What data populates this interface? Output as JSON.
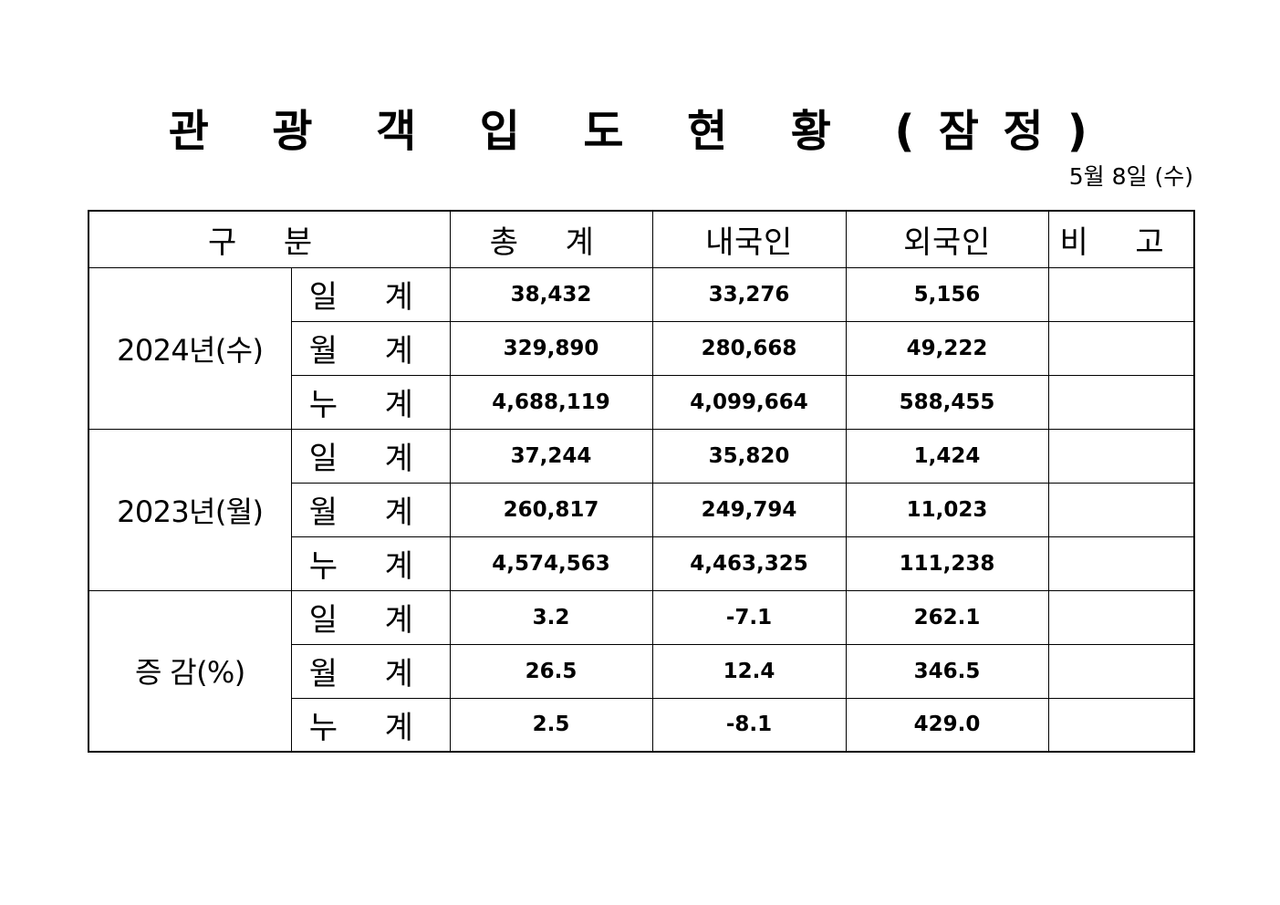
{
  "title": "관 광 객 입 도 현 황 (잠정)",
  "date": "5월  8일  (수)",
  "table": {
    "headers": {
      "category": "구  분",
      "total": "총  계",
      "domestic": "내국인",
      "foreign": "외국인",
      "remarks": "비  고"
    },
    "groups": [
      {
        "label": "2024년(수)",
        "rows": [
          {
            "label": "일 계",
            "total": "38,432",
            "domestic": "33,276",
            "foreign": "5,156",
            "remarks": ""
          },
          {
            "label": "월 계",
            "total": "329,890",
            "domestic": "280,668",
            "foreign": "49,222",
            "remarks": ""
          },
          {
            "label": "누 계",
            "total": "4,688,119",
            "domestic": "4,099,664",
            "foreign": "588,455",
            "remarks": ""
          }
        ]
      },
      {
        "label": "2023년(월)",
        "rows": [
          {
            "label": "일 계",
            "total": "37,244",
            "domestic": "35,820",
            "foreign": "1,424",
            "remarks": ""
          },
          {
            "label": "월 계",
            "total": "260,817",
            "domestic": "249,794",
            "foreign": "11,023",
            "remarks": ""
          },
          {
            "label": "누 계",
            "total": "4,574,563",
            "domestic": "4,463,325",
            "foreign": "111,238",
            "remarks": ""
          }
        ]
      },
      {
        "label": "증 감(%)",
        "rows": [
          {
            "label": "일 계",
            "total": "3.2",
            "domestic": "-7.1",
            "foreign": "262.1",
            "remarks": ""
          },
          {
            "label": "월 계",
            "total": "26.5",
            "domestic": "12.4",
            "foreign": "346.5",
            "remarks": ""
          },
          {
            "label": "누 계",
            "total": "2.5",
            "domestic": "-8.1",
            "foreign": "429.0",
            "remarks": ""
          }
        ]
      }
    ]
  }
}
